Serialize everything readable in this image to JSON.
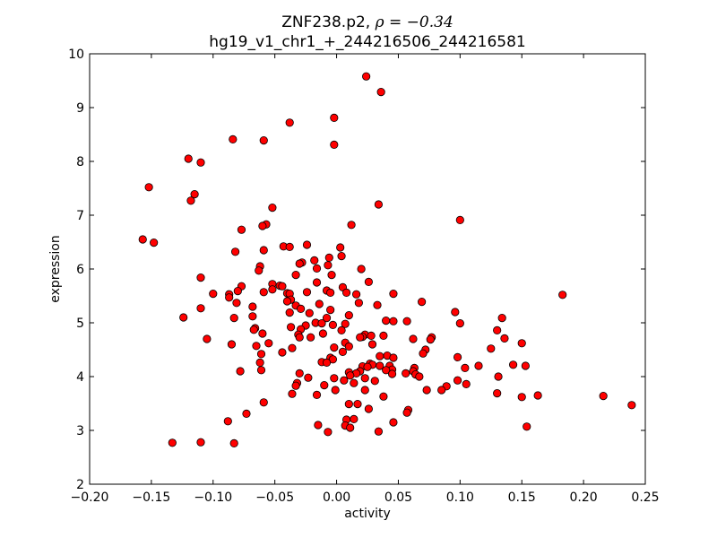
{
  "chart_data": {
    "type": "scatter",
    "title_main": "ZNF238.p2, ",
    "title_rho": "ρ = −0.34",
    "subtitle": "hg19_v1_chr1_+_244216506_244216581",
    "xlabel": "activity",
    "ylabel": "expression",
    "xlim": [
      -0.2,
      0.25
    ],
    "ylim": [
      2,
      10
    ],
    "xticks": [
      -0.2,
      -0.15,
      -0.1,
      -0.05,
      0.0,
      0.05,
      0.1,
      0.15,
      0.2,
      0.25
    ],
    "xtick_labels": [
      "−0.20",
      "−0.15",
      "−0.10",
      "−0.05",
      "0.00",
      "0.05",
      "0.10",
      "0.15",
      "0.20",
      "0.25"
    ],
    "yticks": [
      2,
      3,
      4,
      5,
      6,
      7,
      8,
      9,
      10
    ],
    "ytick_labels": [
      "2",
      "3",
      "4",
      "5",
      "6",
      "7",
      "8",
      "9",
      "10"
    ],
    "grid": false,
    "marker_color": "#ff0000",
    "marker_edge": "#000000",
    "points": [
      {
        "x": 0.024,
        "y": 9.58
      },
      {
        "x": 0.036,
        "y": 9.29
      },
      {
        "x": -0.002,
        "y": 8.81
      },
      {
        "x": -0.038,
        "y": 8.72
      },
      {
        "x": -0.084,
        "y": 8.41
      },
      {
        "x": -0.059,
        "y": 8.39
      },
      {
        "x": -0.002,
        "y": 8.31
      },
      {
        "x": -0.12,
        "y": 8.05
      },
      {
        "x": -0.11,
        "y": 7.98
      },
      {
        "x": -0.152,
        "y": 7.52
      },
      {
        "x": -0.115,
        "y": 7.39
      },
      {
        "x": -0.118,
        "y": 7.27
      },
      {
        "x": 0.034,
        "y": 7.2
      },
      {
        "x": -0.052,
        "y": 7.14
      },
      {
        "x": 0.1,
        "y": 6.91
      },
      {
        "x": -0.057,
        "y": 6.83
      },
      {
        "x": 0.012,
        "y": 6.82
      },
      {
        "x": -0.06,
        "y": 6.8
      },
      {
        "x": -0.077,
        "y": 6.73
      },
      {
        "x": -0.157,
        "y": 6.55
      },
      {
        "x": -0.148,
        "y": 6.49
      },
      {
        "x": -0.024,
        "y": 6.45
      },
      {
        "x": -0.043,
        "y": 6.42
      },
      {
        "x": -0.038,
        "y": 6.41
      },
      {
        "x": 0.003,
        "y": 6.4
      },
      {
        "x": -0.059,
        "y": 6.35
      },
      {
        "x": -0.082,
        "y": 6.32
      },
      {
        "x": 0.004,
        "y": 6.24
      },
      {
        "x": -0.006,
        "y": 6.21
      },
      {
        "x": -0.018,
        "y": 6.16
      },
      {
        "x": -0.028,
        "y": 6.12
      },
      {
        "x": -0.03,
        "y": 6.1
      },
      {
        "x": -0.007,
        "y": 6.07
      },
      {
        "x": -0.062,
        "y": 6.05
      },
      {
        "x": -0.016,
        "y": 6.01
      },
      {
        "x": 0.02,
        "y": 6.0
      },
      {
        "x": -0.063,
        "y": 5.97
      },
      {
        "x": -0.004,
        "y": 5.89
      },
      {
        "x": -0.033,
        "y": 5.89
      },
      {
        "x": -0.11,
        "y": 5.84
      },
      {
        "x": 0.026,
        "y": 5.76
      },
      {
        "x": -0.016,
        "y": 5.75
      },
      {
        "x": -0.052,
        "y": 5.72
      },
      {
        "x": -0.046,
        "y": 5.69
      },
      {
        "x": -0.044,
        "y": 5.68
      },
      {
        "x": -0.077,
        "y": 5.68
      },
      {
        "x": 0.005,
        "y": 5.66
      },
      {
        "x": -0.052,
        "y": 5.62
      },
      {
        "x": -0.008,
        "y": 5.6
      },
      {
        "x": -0.08,
        "y": 5.59
      },
      {
        "x": -0.024,
        "y": 5.57
      },
      {
        "x": -0.059,
        "y": 5.57
      },
      {
        "x": -0.005,
        "y": 5.56
      },
      {
        "x": 0.008,
        "y": 5.56
      },
      {
        "x": -0.04,
        "y": 5.55
      },
      {
        "x": -0.038,
        "y": 5.54
      },
      {
        "x": -0.1,
        "y": 5.54
      },
      {
        "x": 0.046,
        "y": 5.54
      },
      {
        "x": -0.087,
        "y": 5.53
      },
      {
        "x": 0.016,
        "y": 5.53
      },
      {
        "x": 0.183,
        "y": 5.52
      },
      {
        "x": -0.087,
        "y": 5.47
      },
      {
        "x": -0.037,
        "y": 5.43
      },
      {
        "x": -0.04,
        "y": 5.4
      },
      {
        "x": 0.069,
        "y": 5.39
      },
      {
        "x": 0.018,
        "y": 5.37
      },
      {
        "x": -0.081,
        "y": 5.37
      },
      {
        "x": -0.014,
        "y": 5.35
      },
      {
        "x": -0.033,
        "y": 5.32
      },
      {
        "x": 0.033,
        "y": 5.33
      },
      {
        "x": -0.068,
        "y": 5.3
      },
      {
        "x": -0.11,
        "y": 5.27
      },
      {
        "x": -0.029,
        "y": 5.26
      },
      {
        "x": -0.005,
        "y": 5.24
      },
      {
        "x": 0.096,
        "y": 5.2
      },
      {
        "x": -0.038,
        "y": 5.19
      },
      {
        "x": -0.022,
        "y": 5.18
      },
      {
        "x": 0.01,
        "y": 5.14
      },
      {
        "x": -0.068,
        "y": 5.12
      },
      {
        "x": -0.124,
        "y": 5.1
      },
      {
        "x": -0.083,
        "y": 5.09
      },
      {
        "x": -0.008,
        "y": 5.09
      },
      {
        "x": 0.134,
        "y": 5.09
      },
      {
        "x": 0.04,
        "y": 5.04
      },
      {
        "x": 0.046,
        "y": 5.03
      },
      {
        "x": 0.057,
        "y": 5.03
      },
      {
        "x": -0.017,
        "y": 5.0
      },
      {
        "x": 0.1,
        "y": 4.99
      },
      {
        "x": -0.012,
        "y": 4.99
      },
      {
        "x": -0.003,
        "y": 4.96
      },
      {
        "x": 0.007,
        "y": 4.98
      },
      {
        "x": -0.025,
        "y": 4.95
      },
      {
        "x": -0.037,
        "y": 4.92
      },
      {
        "x": -0.066,
        "y": 4.9
      },
      {
        "x": -0.029,
        "y": 4.88
      },
      {
        "x": -0.067,
        "y": 4.87
      },
      {
        "x": 0.004,
        "y": 4.86
      },
      {
        "x": 0.13,
        "y": 4.86
      },
      {
        "x": -0.06,
        "y": 4.8
      },
      {
        "x": -0.011,
        "y": 4.8
      },
      {
        "x": 0.023,
        "y": 4.78
      },
      {
        "x": -0.031,
        "y": 4.78
      },
      {
        "x": 0.028,
        "y": 4.76
      },
      {
        "x": 0.038,
        "y": 4.76
      },
      {
        "x": 0.021,
        "y": 4.74
      },
      {
        "x": -0.03,
        "y": 4.73
      },
      {
        "x": 0.077,
        "y": 4.73
      },
      {
        "x": -0.021,
        "y": 4.73
      },
      {
        "x": 0.019,
        "y": 4.73
      },
      {
        "x": -0.105,
        "y": 4.7
      },
      {
        "x": 0.062,
        "y": 4.7
      },
      {
        "x": 0.136,
        "y": 4.71
      },
      {
        "x": 0.076,
        "y": 4.69
      },
      {
        "x": 0.007,
        "y": 4.63
      },
      {
        "x": 0.15,
        "y": 4.62
      },
      {
        "x": -0.055,
        "y": 4.62
      },
      {
        "x": 0.029,
        "y": 4.6
      },
      {
        "x": -0.085,
        "y": 4.6
      },
      {
        "x": -0.065,
        "y": 4.57
      },
      {
        "x": 0.01,
        "y": 4.56
      },
      {
        "x": -0.002,
        "y": 4.54
      },
      {
        "x": -0.036,
        "y": 4.53
      },
      {
        "x": 0.125,
        "y": 4.52
      },
      {
        "x": 0.072,
        "y": 4.5
      },
      {
        "x": 0.005,
        "y": 4.46
      },
      {
        "x": -0.044,
        "y": 4.45
      },
      {
        "x": 0.07,
        "y": 4.43
      },
      {
        "x": -0.061,
        "y": 4.42
      },
      {
        "x": 0.041,
        "y": 4.39
      },
      {
        "x": 0.035,
        "y": 4.38
      },
      {
        "x": 0.098,
        "y": 4.36
      },
      {
        "x": -0.005,
        "y": 4.35
      },
      {
        "x": 0.046,
        "y": 4.35
      },
      {
        "x": -0.003,
        "y": 4.32
      },
      {
        "x": -0.012,
        "y": 4.27
      },
      {
        "x": -0.062,
        "y": 4.26
      },
      {
        "x": -0.008,
        "y": 4.26
      },
      {
        "x": 0.027,
        "y": 4.24
      },
      {
        "x": 0.029,
        "y": 4.22
      },
      {
        "x": 0.143,
        "y": 4.22
      },
      {
        "x": 0.035,
        "y": 4.2
      },
      {
        "x": 0.153,
        "y": 4.2
      },
      {
        "x": 0.115,
        "y": 4.2
      },
      {
        "x": 0.043,
        "y": 4.2
      },
      {
        "x": 0.021,
        "y": 4.19
      },
      {
        "x": 0.025,
        "y": 4.18
      },
      {
        "x": 0.104,
        "y": 4.16
      },
      {
        "x": 0.063,
        "y": 4.16
      },
      {
        "x": 0.045,
        "y": 4.13
      },
      {
        "x": 0.04,
        "y": 4.12
      },
      {
        "x": -0.061,
        "y": 4.12
      },
      {
        "x": 0.062,
        "y": 4.1
      },
      {
        "x": -0.078,
        "y": 4.1
      },
      {
        "x": 0.019,
        "y": 4.1
      },
      {
        "x": 0.01,
        "y": 4.08
      },
      {
        "x": -0.03,
        "y": 4.06
      },
      {
        "x": 0.056,
        "y": 4.06
      },
      {
        "x": 0.016,
        "y": 4.06
      },
      {
        "x": 0.045,
        "y": 4.05
      },
      {
        "x": 0.064,
        "y": 4.04
      },
      {
        "x": 0.011,
        "y": 4.02
      },
      {
        "x": 0.067,
        "y": 4.0
      },
      {
        "x": 0.131,
        "y": 4.0
      },
      {
        "x": -0.023,
        "y": 3.98
      },
      {
        "x": -0.002,
        "y": 3.97
      },
      {
        "x": 0.023,
        "y": 3.97
      },
      {
        "x": 0.006,
        "y": 3.93
      },
      {
        "x": 0.098,
        "y": 3.93
      },
      {
        "x": 0.031,
        "y": 3.92
      },
      {
        "x": 0.014,
        "y": 3.88
      },
      {
        "x": -0.032,
        "y": 3.88
      },
      {
        "x": 0.105,
        "y": 3.86
      },
      {
        "x": -0.01,
        "y": 3.84
      },
      {
        "x": -0.033,
        "y": 3.83
      },
      {
        "x": 0.089,
        "y": 3.82
      },
      {
        "x": 0.085,
        "y": 3.75
      },
      {
        "x": -0.001,
        "y": 3.75
      },
      {
        "x": 0.073,
        "y": 3.75
      },
      {
        "x": 0.023,
        "y": 3.75
      },
      {
        "x": 0.13,
        "y": 3.69
      },
      {
        "x": -0.036,
        "y": 3.68
      },
      {
        "x": -0.016,
        "y": 3.66
      },
      {
        "x": 0.038,
        "y": 3.63
      },
      {
        "x": 0.163,
        "y": 3.65
      },
      {
        "x": 0.216,
        "y": 3.64
      },
      {
        "x": 0.15,
        "y": 3.62
      },
      {
        "x": -0.059,
        "y": 3.52
      },
      {
        "x": 0.01,
        "y": 3.49
      },
      {
        "x": 0.017,
        "y": 3.49
      },
      {
        "x": 0.239,
        "y": 3.47
      },
      {
        "x": 0.026,
        "y": 3.4
      },
      {
        "x": 0.058,
        "y": 3.38
      },
      {
        "x": 0.057,
        "y": 3.33
      },
      {
        "x": -0.073,
        "y": 3.31
      },
      {
        "x": 0.008,
        "y": 3.2
      },
      {
        "x": 0.014,
        "y": 3.21
      },
      {
        "x": -0.088,
        "y": 3.17
      },
      {
        "x": 0.046,
        "y": 3.15
      },
      {
        "x": -0.015,
        "y": 3.1
      },
      {
        "x": 0.007,
        "y": 3.09
      },
      {
        "x": 0.154,
        "y": 3.07
      },
      {
        "x": 0.011,
        "y": 3.05
      },
      {
        "x": 0.034,
        "y": 2.98
      },
      {
        "x": -0.007,
        "y": 2.97
      },
      {
        "x": -0.133,
        "y": 2.77
      },
      {
        "x": -0.11,
        "y": 2.78
      },
      {
        "x": -0.083,
        "y": 2.76
      }
    ]
  }
}
